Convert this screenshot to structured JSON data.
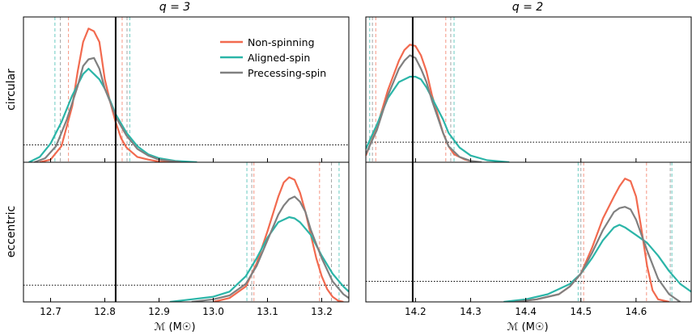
{
  "chart_data": {
    "type": "line",
    "row_labels": [
      "circular",
      "eccentric"
    ],
    "legend": {
      "placement": "top-right of top-left panel",
      "entries": [
        {
          "name": "Non-spinning",
          "color": "#f26a4f"
        },
        {
          "name": "Aligned-spin",
          "color": "#2bb5a8"
        },
        {
          "name": "Precessing-spin",
          "color": "#808080"
        }
      ]
    },
    "columns": [
      {
        "title": "q = 3",
        "xlabel": "ℳ (M☉)",
        "xlim": [
          12.65,
          13.25
        ],
        "xticks": [
          12.7,
          12.8,
          12.9,
          13.0,
          13.1,
          13.2
        ],
        "xtick_labels": [
          "12.7",
          "12.8",
          "12.9",
          "13.0",
          "13.1",
          "13.2"
        ],
        "true_value": 12.82
      },
      {
        "title": "q = 2",
        "xlabel": "ℳ (M☉)",
        "xlim": [
          14.11,
          14.7
        ],
        "xticks": [
          14.2,
          14.3,
          14.4,
          14.5,
          14.6
        ],
        "xtick_labels": [
          "14.2",
          "14.3",
          "14.4",
          "14.5",
          "14.6"
        ],
        "true_value": 14.195
      }
    ],
    "panels": [
      {
        "id": "circular-q3",
        "row": 0,
        "col": 0,
        "dotted_level": 0.13,
        "series": [
          {
            "name": "Non-spinning",
            "color": "#f26a4f",
            "x": [
              12.68,
              12.7,
              12.72,
              12.74,
              12.75,
              12.76,
              12.77,
              12.78,
              12.79,
              12.8,
              12.81,
              12.82,
              12.83,
              12.84,
              12.86,
              12.88,
              12.9,
              12.93
            ],
            "y": [
              0.0,
              0.02,
              0.12,
              0.42,
              0.68,
              0.9,
              1.0,
              0.98,
              0.9,
              0.62,
              0.45,
              0.3,
              0.18,
              0.11,
              0.04,
              0.02,
              0.005,
              0.0
            ],
            "ci90": [
              12.733,
              12.832
            ]
          },
          {
            "name": "Aligned-spin",
            "color": "#2bb5a8",
            "x": [
              12.66,
              12.68,
              12.7,
              12.72,
              12.74,
              12.76,
              12.77,
              12.78,
              12.79,
              12.8,
              12.81,
              12.82,
              12.84,
              12.86,
              12.88,
              12.9,
              12.93,
              12.97
            ],
            "y": [
              0.0,
              0.04,
              0.14,
              0.3,
              0.5,
              0.66,
              0.7,
              0.66,
              0.62,
              0.55,
              0.46,
              0.36,
              0.22,
              0.12,
              0.06,
              0.03,
              0.01,
              0.0
            ],
            "ci90": [
              12.708,
              12.846
            ]
          },
          {
            "name": "Precessing-spin",
            "color": "#808080",
            "x": [
              12.67,
              12.69,
              12.71,
              12.73,
              12.75,
              12.76,
              12.77,
              12.78,
              12.79,
              12.8,
              12.81,
              12.82,
              12.84,
              12.86,
              12.88,
              12.9,
              12.94
            ],
            "y": [
              0.0,
              0.03,
              0.12,
              0.32,
              0.57,
              0.72,
              0.77,
              0.78,
              0.7,
              0.55,
              0.45,
              0.34,
              0.2,
              0.1,
              0.05,
              0.02,
              0.0
            ],
            "ci90": [
              12.718,
              12.841
            ]
          }
        ]
      },
      {
        "id": "circular-q2",
        "row": 0,
        "col": 1,
        "dotted_level": 0.15,
        "series": [
          {
            "name": "Non-spinning",
            "color": "#f26a4f",
            "x": [
              14.11,
              14.13,
              14.15,
              14.17,
              14.18,
              14.19,
              14.2,
              14.21,
              14.22,
              14.23,
              14.24,
              14.25,
              14.26,
              14.27,
              14.29,
              14.31
            ],
            "y": [
              0.05,
              0.26,
              0.54,
              0.76,
              0.84,
              0.88,
              0.87,
              0.8,
              0.68,
              0.5,
              0.36,
              0.22,
              0.12,
              0.06,
              0.02,
              0.0
            ],
            "ci90": [
              14.128,
              14.255
            ]
          },
          {
            "name": "Aligned-spin",
            "color": "#2bb5a8",
            "x": [
              14.11,
              14.13,
              14.15,
              14.17,
              14.19,
              14.2,
              14.21,
              14.22,
              14.23,
              14.24,
              14.25,
              14.26,
              14.28,
              14.3,
              14.33,
              14.37
            ],
            "y": [
              0.1,
              0.28,
              0.48,
              0.6,
              0.64,
              0.64,
              0.62,
              0.56,
              0.48,
              0.4,
              0.32,
              0.22,
              0.11,
              0.05,
              0.015,
              0.0
            ],
            "ci90": [
              14.117,
              14.27
            ]
          },
          {
            "name": "Precessing-spin",
            "color": "#808080",
            "x": [
              14.11,
              14.13,
              14.15,
              14.17,
              14.18,
              14.19,
              14.2,
              14.21,
              14.22,
              14.23,
              14.24,
              14.25,
              14.26,
              14.28,
              14.3,
              14.32
            ],
            "y": [
              0.06,
              0.24,
              0.5,
              0.7,
              0.76,
              0.8,
              0.78,
              0.7,
              0.6,
              0.46,
              0.34,
              0.22,
              0.12,
              0.04,
              0.01,
              0.0
            ],
            "ci90": [
              14.122,
              14.264
            ]
          }
        ]
      },
      {
        "id": "eccentric-q3",
        "row": 1,
        "col": 0,
        "dotted_level": 0.13,
        "series": [
          {
            "name": "Non-spinning",
            "color": "#f26a4f",
            "x": [
              13.0,
              13.03,
              13.06,
              13.08,
              13.1,
              13.12,
              13.13,
              13.14,
              13.15,
              13.16,
              13.17,
              13.18,
              13.19,
              13.2,
              13.21,
              13.22,
              13.23,
              13.24
            ],
            "y": [
              0.0,
              0.03,
              0.12,
              0.3,
              0.55,
              0.82,
              0.93,
              0.97,
              0.95,
              0.85,
              0.7,
              0.52,
              0.34,
              0.2,
              0.1,
              0.04,
              0.01,
              0.0
            ],
            "ci90": [
              13.075,
              13.196
            ]
          },
          {
            "name": "Aligned-spin",
            "color": "#2bb5a8",
            "x": [
              12.92,
              12.96,
              13.0,
              13.03,
              13.06,
              13.08,
              13.1,
              13.12,
              13.14,
              13.15,
              13.16,
              13.18,
              13.2,
              13.22,
              13.24,
              13.25
            ],
            "y": [
              0.0,
              0.02,
              0.04,
              0.08,
              0.2,
              0.34,
              0.5,
              0.62,
              0.66,
              0.65,
              0.62,
              0.52,
              0.36,
              0.22,
              0.12,
              0.08
            ],
            "ci90": [
              13.062,
              13.232
            ]
          },
          {
            "name": "Precessing-spin",
            "color": "#808080",
            "x": [
              12.96,
              13.0,
              13.03,
              13.06,
              13.08,
              13.1,
              13.12,
              13.13,
              13.14,
              13.15,
              13.16,
              13.17,
              13.18,
              13.2,
              13.22,
              13.24,
              13.25
            ],
            "y": [
              0.0,
              0.02,
              0.05,
              0.14,
              0.28,
              0.48,
              0.68,
              0.75,
              0.8,
              0.82,
              0.78,
              0.7,
              0.56,
              0.34,
              0.16,
              0.06,
              0.03
            ],
            "ci90": [
              13.071,
              13.218
            ]
          }
        ]
      },
      {
        "id": "eccentric-q2",
        "row": 1,
        "col": 1,
        "dotted_level": 0.16,
        "series": [
          {
            "name": "Non-spinning",
            "color": "#f26a4f",
            "x": [
              14.38,
              14.42,
              14.46,
              14.48,
              14.5,
              14.52,
              14.54,
              14.56,
              14.57,
              14.58,
              14.59,
              14.6,
              14.61,
              14.62,
              14.63,
              14.64,
              14.66
            ],
            "y": [
              0.0,
              0.02,
              0.06,
              0.12,
              0.22,
              0.42,
              0.65,
              0.82,
              0.9,
              0.96,
              0.94,
              0.82,
              0.56,
              0.28,
              0.09,
              0.02,
              0.0
            ],
            "ci90": [
              14.505,
              14.619
            ]
          },
          {
            "name": "Aligned-spin",
            "color": "#2bb5a8",
            "x": [
              14.36,
              14.4,
              14.44,
              14.48,
              14.5,
              14.52,
              14.54,
              14.56,
              14.57,
              14.58,
              14.6,
              14.62,
              14.64,
              14.66,
              14.68,
              14.7
            ],
            "y": [
              0.0,
              0.02,
              0.06,
              0.14,
              0.22,
              0.34,
              0.48,
              0.58,
              0.6,
              0.58,
              0.52,
              0.46,
              0.36,
              0.24,
              0.14,
              0.08
            ],
            "ci90": [
              14.495,
              14.665
            ]
          },
          {
            "name": "Precessing-spin",
            "color": "#808080",
            "x": [
              14.38,
              14.42,
              14.46,
              14.48,
              14.5,
              14.52,
              14.54,
              14.56,
              14.57,
              14.58,
              14.59,
              14.6,
              14.62,
              14.64,
              14.66,
              14.68
            ],
            "y": [
              0.0,
              0.02,
              0.06,
              0.12,
              0.22,
              0.38,
              0.56,
              0.7,
              0.73,
              0.74,
              0.72,
              0.64,
              0.4,
              0.18,
              0.06,
              0.0
            ],
            "ci90": [
              14.5,
              14.662
            ]
          }
        ]
      }
    ]
  }
}
